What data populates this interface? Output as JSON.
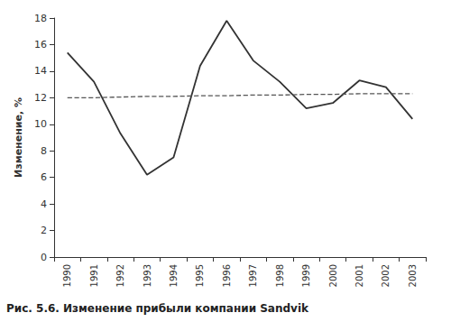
{
  "chart_data": {
    "type": "line",
    "title": "Рис. 5.6. Изменение прибыли компании Sandvik",
    "y_label": "Изменение, %",
    "categories": [
      "1990",
      "1991",
      "1992",
      "1993",
      "1994",
      "1995",
      "1996",
      "1997",
      "1998",
      "1999",
      "2000",
      "2001",
      "2002",
      "2003"
    ],
    "series": [
      {
        "color": "#333333",
        "line_style": "solid",
        "values": [
          15.4,
          13.2,
          9.3,
          6.2,
          7.5,
          14.4,
          17.8,
          14.8,
          13.2,
          11.2,
          11.6,
          13.3,
          12.8,
          10.4
        ]
      },
      {
        "color": "#555555",
        "line_style": "dashed",
        "values": [
          12.0,
          12.0,
          12.05,
          12.1,
          12.1,
          12.15,
          12.15,
          12.2,
          12.2,
          12.25,
          12.25,
          12.3,
          12.3,
          12.3
        ]
      }
    ],
    "ylim": [
      0,
      18
    ],
    "yticks": [
      0,
      2,
      4,
      6,
      8,
      10,
      12,
      14,
      16,
      18
    ],
    "grid": false
  }
}
